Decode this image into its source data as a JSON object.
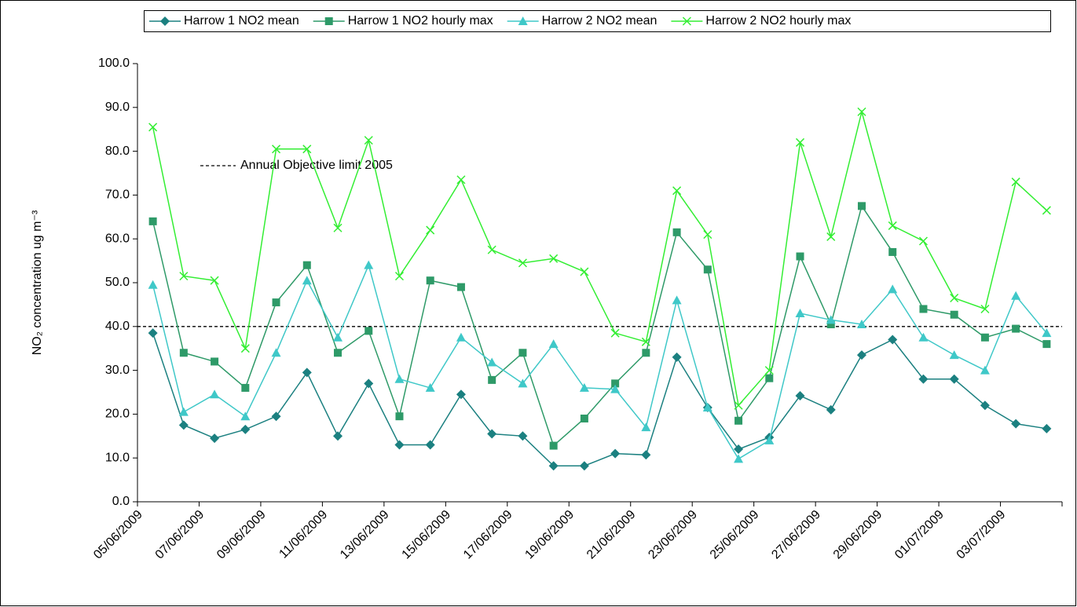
{
  "chart_data": {
    "type": "line",
    "ylabel": "NO₂ concentration ug m⁻³",
    "categories": [
      "05/06/2009",
      null,
      "07/06/2009",
      null,
      "09/06/2009",
      null,
      "11/06/2009",
      null,
      "13/06/2009",
      null,
      "15/06/2009",
      null,
      "17/06/2009",
      null,
      "19/06/2009",
      null,
      "21/06/2009",
      null,
      "23/06/2009",
      null,
      "25/06/2009",
      null,
      "27/06/2009",
      null,
      "29/06/2009",
      null,
      "01/07/2009",
      null,
      "03/07/2009",
      null
    ],
    "series": [
      {
        "name": "Harrow 1 NO2 mean",
        "color": "#1b8080",
        "marker": "diamond",
        "values": [
          38.5,
          17.5,
          14.5,
          16.5,
          19.5,
          29.5,
          15,
          27,
          13,
          13,
          24.5,
          15.5,
          15,
          8.2,
          8.2,
          11,
          10.7,
          33,
          21.5,
          12,
          14.7,
          24.2,
          21,
          33.5,
          37,
          28,
          28,
          22,
          17.8,
          16.7
        ]
      },
      {
        "name": "Harrow 1 NO2 hourly max",
        "color": "#2e9a68",
        "marker": "square",
        "values": [
          64,
          34,
          32,
          26,
          45.5,
          54,
          34,
          39,
          19.5,
          50.5,
          49,
          27.8,
          34,
          12.8,
          19,
          27,
          34,
          61.5,
          53,
          18.5,
          28.2,
          56,
          40.5,
          67.5,
          57,
          44,
          42.7,
          37.5,
          39.5,
          36
        ]
      },
      {
        "name": "Harrow 2 NO2 mean",
        "color": "#3fc8c8",
        "marker": "triangle",
        "values": [
          49.5,
          20.5,
          24.5,
          19.5,
          34,
          50.5,
          37.5,
          54,
          28,
          26,
          37.5,
          31.8,
          27,
          36,
          26,
          25.7,
          17,
          46,
          21.5,
          9.8,
          14,
          43,
          41.5,
          40.5,
          48.5,
          37.5,
          33.5,
          30,
          47,
          38.5
        ]
      },
      {
        "name": "Harrow 2 NO2 hourly max",
        "color": "#33ee33",
        "marker": "x",
        "values": [
          85.5,
          51.5,
          50.5,
          35,
          80.5,
          80.5,
          62.5,
          82.5,
          51.5,
          62,
          73.5,
          57.5,
          54.5,
          55.5,
          52.5,
          38.5,
          36.5,
          71,
          61,
          22,
          30,
          82,
          60.5,
          89,
          63,
          59.5,
          46.5,
          44,
          73,
          66.5
        ]
      }
    ],
    "threshold": {
      "value": 40,
      "label": "Annual Objective limit 2005"
    },
    "ylim": [
      0,
      100
    ],
    "yticks": [
      {
        "value": 0,
        "label": "0.0"
      },
      {
        "value": 10,
        "label": "10.0"
      },
      {
        "value": 20,
        "label": "20.0"
      },
      {
        "value": 30,
        "label": "30.0"
      },
      {
        "value": 40,
        "label": "40.0"
      },
      {
        "value": 50,
        "label": "50.0"
      },
      {
        "value": 60,
        "label": "60.0"
      },
      {
        "value": 70,
        "label": "70.0"
      },
      {
        "value": 80,
        "label": "80.0"
      },
      {
        "value": 90,
        "label": "90.0"
      },
      {
        "value": 100,
        "label": "100.0"
      }
    ],
    "legend": "top"
  }
}
